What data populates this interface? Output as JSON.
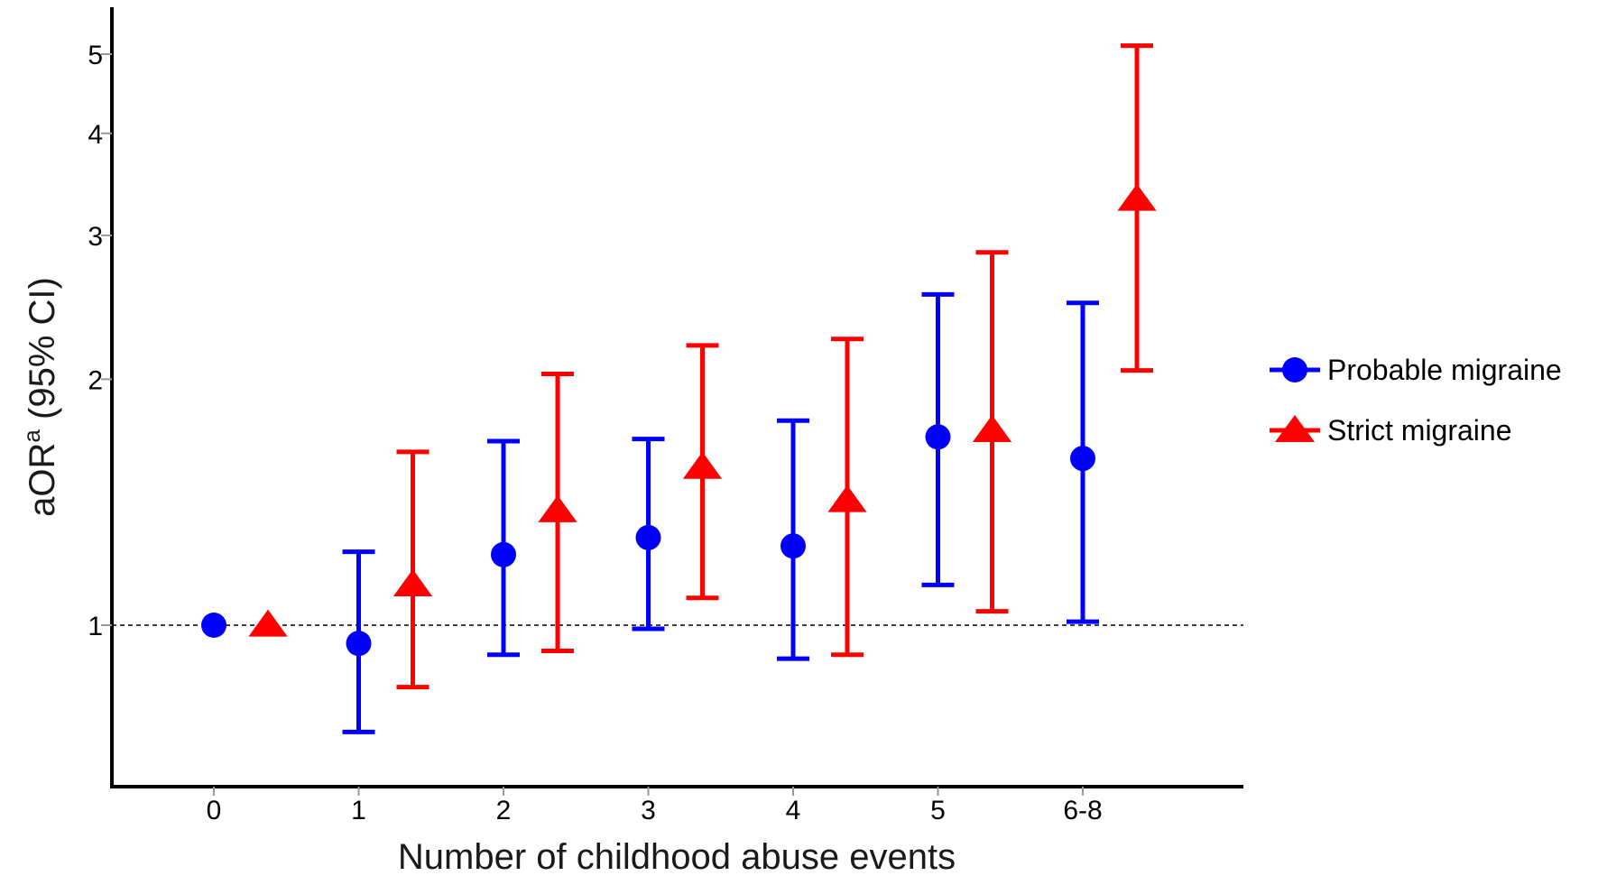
{
  "chart_data": {
    "type": "scatter",
    "subtype": "point-errorbar",
    "categories": [
      "0",
      "1",
      "2",
      "3",
      "4",
      "5",
      "6-8"
    ],
    "xlabel": "Number of childhood abuse events",
    "ylabel_main": "aOR",
    "ylabel_sup": "a",
    "ylabel_tail": " (95% CI)",
    "yscale": "log",
    "ylim": [
      0.7,
      5.4
    ],
    "yticks": [
      1,
      2,
      3,
      4,
      5
    ],
    "reference_line": 1,
    "legend_position": "right",
    "grid": false,
    "series": [
      {
        "name": "Probable migraine",
        "color": "#0000ff",
        "marker": "circle",
        "values": [
          1.0,
          0.95,
          1.22,
          1.28,
          1.25,
          1.7,
          1.6
        ],
        "ci_low": [
          null,
          0.74,
          0.92,
          0.99,
          0.91,
          1.12,
          1.01
        ],
        "ci_high": [
          null,
          1.23,
          1.68,
          1.69,
          1.78,
          2.54,
          2.48
        ]
      },
      {
        "name": "Strict migraine",
        "color": "#ff0000",
        "marker": "triangle",
        "values": [
          1.0,
          1.12,
          1.38,
          1.56,
          1.42,
          1.73,
          3.32
        ],
        "ci_low": [
          null,
          0.84,
          0.93,
          1.08,
          0.92,
          1.04,
          2.05
        ],
        "ci_high": [
          null,
          1.63,
          2.03,
          2.2,
          2.24,
          2.86,
          5.12
        ]
      }
    ]
  }
}
